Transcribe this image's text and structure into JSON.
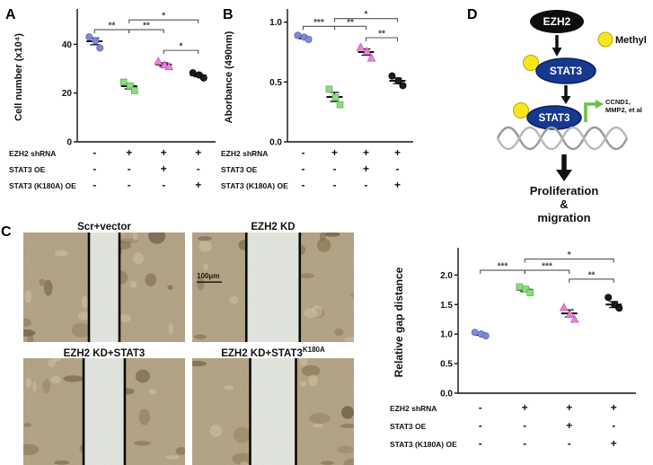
{
  "panels": {
    "a": "A",
    "b": "B",
    "c": "C",
    "d": "D"
  },
  "chart_data": [
    {
      "id": "A",
      "type": "scatter",
      "ylabel": "Cell number (x10⁴)",
      "ylim": [
        0,
        53
      ],
      "yticks": [
        "0",
        "20",
        "40"
      ],
      "groups": [
        {
          "symbol": "circle",
          "color": "#8289d6",
          "edge": "#5e63b8",
          "points": [
            43,
            41.5,
            38.5
          ],
          "mean": 41.2,
          "sem": 1.4
        },
        {
          "symbol": "square",
          "color": "#8ddc82",
          "edge": "#58b44e",
          "points": [
            24.5,
            23,
            21
          ],
          "mean": 22.8,
          "sem": 1.1
        },
        {
          "symbol": "triangle",
          "color": "#e389d8",
          "edge": "#c257b2",
          "points": [
            33,
            31.5,
            30.8
          ],
          "mean": 31.7,
          "sem": 0.7
        },
        {
          "symbol": "circle",
          "color": "#1c1c1c",
          "edge": "#000000",
          "points": [
            28.3,
            27.4,
            26.2
          ],
          "mean": 27.3,
          "sem": 0.6
        }
      ],
      "brackets": [
        {
          "from": 1,
          "to": 3,
          "y": 50,
          "label": "*"
        },
        {
          "from": 0,
          "to": 1,
          "y": 46,
          "label": "**"
        },
        {
          "from": 1,
          "to": 2,
          "y": 46,
          "label": "**"
        },
        {
          "from": 2,
          "to": 3,
          "y": 37.5,
          "label": "*"
        }
      ],
      "xrows": [
        {
          "label": "EZH2 shRNA",
          "values": [
            "-",
            "+",
            "+",
            "+"
          ]
        },
        {
          "label": "STAT3 OE",
          "values": [
            "-",
            "-",
            "+",
            "-"
          ]
        },
        {
          "label": "STAT3 (K180A) OE",
          "values": [
            "-",
            "-",
            "-",
            "+"
          ]
        }
      ]
    },
    {
      "id": "B",
      "type": "scatter",
      "ylabel": "Aborbance (490nm)",
      "ylim": [
        0,
        1.08
      ],
      "yticks": [
        "0.0",
        "0.5",
        "1.0"
      ],
      "groups": [
        {
          "symbol": "circle",
          "color": "#8289d6",
          "edge": "#5e63b8",
          "points": [
            0.89,
            0.875,
            0.855
          ],
          "mean": 0.873,
          "sem": 0.011
        },
        {
          "symbol": "square",
          "color": "#8ddc82",
          "edge": "#58b44e",
          "points": [
            0.44,
            0.37,
            0.31
          ],
          "mean": 0.375,
          "sem": 0.038
        },
        {
          "symbol": "triangle",
          "color": "#e389d8",
          "edge": "#c257b2",
          "points": [
            0.79,
            0.755,
            0.7
          ],
          "mean": 0.75,
          "sem": 0.026
        },
        {
          "symbol": "circle",
          "color": "#1c1c1c",
          "edge": "#000000",
          "points": [
            0.55,
            0.51,
            0.47
          ],
          "mean": 0.51,
          "sem": 0.023
        }
      ],
      "brackets": [
        {
          "from": 1,
          "to": 3,
          "y": 1.03,
          "label": "*"
        },
        {
          "from": 0,
          "to": 1,
          "y": 0.965,
          "label": "***"
        },
        {
          "from": 1,
          "to": 2,
          "y": 0.965,
          "label": "**"
        },
        {
          "from": 2,
          "to": 3,
          "y": 0.87,
          "label": "**"
        }
      ],
      "xrows": [
        {
          "label": "EZH2 shRNA",
          "values": [
            "-",
            "+",
            "+",
            "+"
          ]
        },
        {
          "label": "STAT3 OE",
          "values": [
            "-",
            "-",
            "+",
            "-"
          ]
        },
        {
          "label": "STAT3 (K180A) OE",
          "values": [
            "-",
            "-",
            "-",
            "+"
          ]
        }
      ]
    },
    {
      "id": "C",
      "type": "scatter",
      "ylabel": "Relative gap distance",
      "ylim": [
        0,
        2.4
      ],
      "yticks": [
        "0.0",
        "0.5",
        "1.0",
        "1.5",
        "2.0"
      ],
      "groups": [
        {
          "symbol": "circle",
          "color": "#8289d6",
          "edge": "#5e63b8",
          "points": [
            1.03,
            1.0,
            0.97
          ],
          "mean": 1.0,
          "sem": 0.02
        },
        {
          "symbol": "square",
          "color": "#8ddc82",
          "edge": "#58b44e",
          "points": [
            1.8,
            1.76,
            1.7
          ],
          "mean": 1.75,
          "sem": 0.03
        },
        {
          "symbol": "triangle",
          "color": "#e389d8",
          "edge": "#c257b2",
          "points": [
            1.45,
            1.34,
            1.25
          ],
          "mean": 1.35,
          "sem": 0.06
        },
        {
          "symbol": "circle",
          "color": "#1c1c1c",
          "edge": "#000000",
          "points": [
            1.62,
            1.5,
            1.44
          ],
          "mean": 1.5,
          "sem": 0.05
        }
      ],
      "brackets": [
        {
          "from": 1,
          "to": 3,
          "y": 2.27,
          "label": "*"
        },
        {
          "from": 0,
          "to": 1,
          "y": 2.08,
          "label": "***"
        },
        {
          "from": 1,
          "to": 2,
          "y": 2.08,
          "label": "***"
        },
        {
          "from": 2,
          "to": 3,
          "y": 1.93,
          "label": "**"
        }
      ],
      "xrows": [
        {
          "label": "EZH2 shRNA",
          "values": [
            "-",
            "+",
            "+",
            "+"
          ]
        },
        {
          "label": "STAT3 OE",
          "values": [
            "-",
            "-",
            "+",
            "-"
          ]
        },
        {
          "label": "STAT3 (K180A) OE",
          "values": [
            "-",
            "-",
            "-",
            "+"
          ]
        }
      ]
    }
  ],
  "microscopy": {
    "tiles": [
      {
        "label": "Scr+vector",
        "sup": "",
        "gap_rel": 1.0
      },
      {
        "label": "EZH2 KD",
        "sup": "",
        "gap_rel": 1.75,
        "scale_bar": "100μm"
      },
      {
        "label": "EZH2 KD+STAT3",
        "sup": "",
        "gap_rel": 1.35
      },
      {
        "label": "EZH2 KD+STAT3",
        "sup": "K180A",
        "gap_rel": 1.5
      }
    ]
  },
  "diagram": {
    "ezh2": "EZH2",
    "methyl": "Methyl",
    "stat3": "STAT3",
    "stat3b": "STAT3",
    "targets1": "CCND1,",
    "targets2": "MMP2, et al",
    "outcome1": "Proliferation",
    "outcome2": "&",
    "outcome3": "migration",
    "colors": {
      "stat3_fill": "#16388f",
      "methyl_fill": "#f8e71c",
      "promoter_green": "#6cbf45"
    }
  }
}
